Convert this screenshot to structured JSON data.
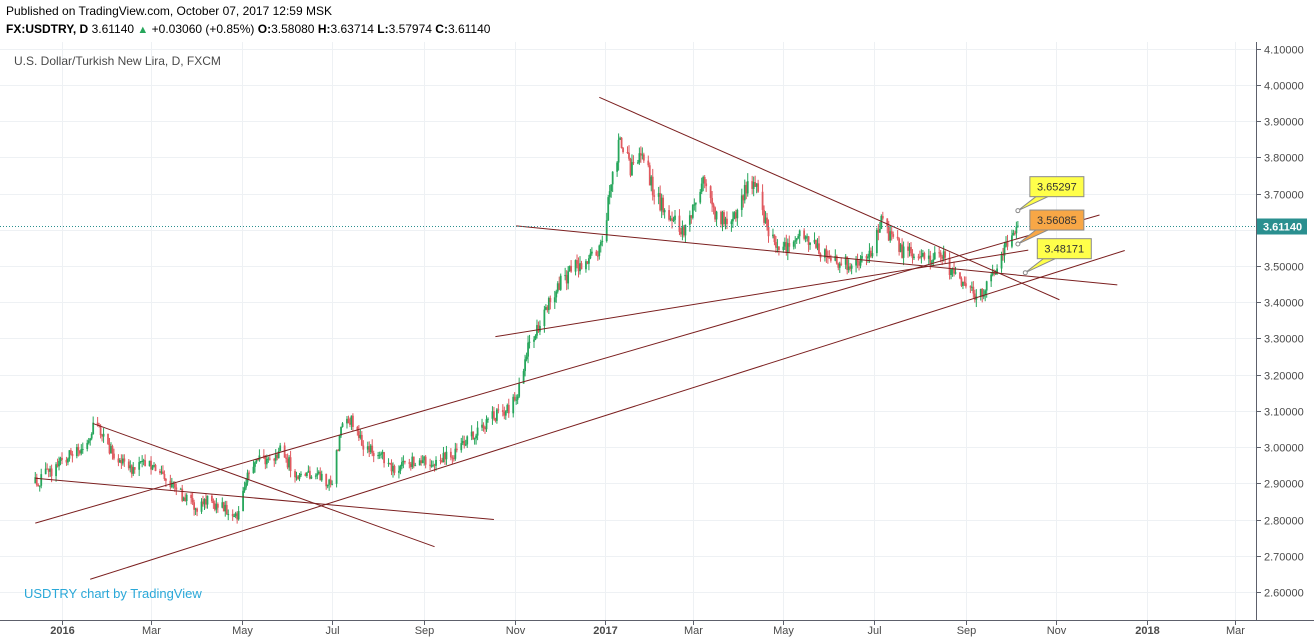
{
  "header": {
    "published": "Published on TradingView.com, October 07, 2017 12:59 MSK",
    "symbol": "FX:USDTRY, D",
    "last": "3.61140",
    "change_arrow": "▲",
    "change": "+0.03060 (+0.85%)",
    "o_label": "O:",
    "o_value": "3.58080",
    "h_label": "H:",
    "h_value": "3.63714",
    "l_label": "L:",
    "l_value": "3.57974",
    "c_label": "C:",
    "c_value": "3.61140"
  },
  "colors": {
    "up": "#26a65b",
    "down": "#e0595f",
    "trendline": "#7b1f1f",
    "grid": "#eef1f4",
    "price_line": "#2a8f8f",
    "callout_yellow": "#ffff4a",
    "callout_orange": "#f8a746",
    "watermark": "#2aa8d8"
  },
  "chart_data": {
    "type": "candlestick",
    "title": "U.S. Dollar/Turkish New Lira, D, FXCM",
    "watermark": "USDTRY chart by TradingView",
    "y_ticks": [
      "4.10000",
      "4.00000",
      "3.90000",
      "3.80000",
      "3.70000",
      "3.60000",
      "3.50000",
      "3.40000",
      "3.30000",
      "3.20000",
      "3.10000",
      "3.00000",
      "2.90000",
      "2.80000",
      "2.70000",
      "2.60000"
    ],
    "ylim": [
      2.575,
      4.105
    ],
    "current_price": "3.61140",
    "current_price_value": 3.6114,
    "x_ticks": [
      {
        "label": "2016",
        "date": "2016-01-01",
        "major": true
      },
      {
        "label": "Mar",
        "date": "2016-03-01",
        "major": false
      },
      {
        "label": "May",
        "date": "2016-05-01",
        "major": false
      },
      {
        "label": "Jul",
        "date": "2016-07-01",
        "major": false
      },
      {
        "label": "Sep",
        "date": "2016-09-01",
        "major": false
      },
      {
        "label": "Nov",
        "date": "2016-11-01",
        "major": false
      },
      {
        "label": "2017",
        "date": "2017-01-01",
        "major": true
      },
      {
        "label": "Mar",
        "date": "2017-03-01",
        "major": false
      },
      {
        "label": "May",
        "date": "2017-05-01",
        "major": false
      },
      {
        "label": "Jul",
        "date": "2017-07-01",
        "major": false
      },
      {
        "label": "Sep",
        "date": "2017-09-01",
        "major": false
      },
      {
        "label": "Nov",
        "date": "2017-11-01",
        "major": false
      },
      {
        "label": "2018",
        "date": "2018-01-01",
        "major": true
      },
      {
        "label": "Mar",
        "date": "2018-03-01",
        "major": false
      }
    ],
    "price_path": [
      [
        "2015-12-14",
        2.9
      ],
      [
        "2015-12-23",
        2.93
      ],
      [
        "2016-01-04",
        2.97
      ],
      [
        "2016-01-14",
        2.99
      ],
      [
        "2016-01-22",
        3.05
      ],
      [
        "2016-01-28",
        3.04
      ],
      [
        "2016-02-05",
        2.97
      ],
      [
        "2016-02-12",
        2.95
      ],
      [
        "2016-02-19",
        2.93
      ],
      [
        "2016-02-25",
        2.96
      ],
      [
        "2016-03-03",
        2.95
      ],
      [
        "2016-03-10",
        2.92
      ],
      [
        "2016-03-17",
        2.89
      ],
      [
        "2016-03-24",
        2.86
      ],
      [
        "2016-03-31",
        2.83
      ],
      [
        "2016-04-07",
        2.85
      ],
      [
        "2016-04-15",
        2.84
      ],
      [
        "2016-04-22",
        2.82
      ],
      [
        "2016-04-29",
        2.81
      ],
      [
        "2016-05-05",
        2.93
      ],
      [
        "2016-05-12",
        2.96
      ],
      [
        "2016-05-20",
        2.97
      ],
      [
        "2016-05-27",
        2.99
      ],
      [
        "2016-06-03",
        2.95
      ],
      [
        "2016-06-10",
        2.91
      ],
      [
        "2016-06-17",
        2.93
      ],
      [
        "2016-06-24",
        2.91
      ],
      [
        "2016-06-30",
        2.89
      ],
      [
        "2016-07-07",
        3.05
      ],
      [
        "2016-07-14",
        3.07
      ],
      [
        "2016-07-21",
        3.01
      ],
      [
        "2016-07-28",
        2.99
      ],
      [
        "2016-08-04",
        2.97
      ],
      [
        "2016-08-11",
        2.94
      ],
      [
        "2016-08-18",
        2.96
      ],
      [
        "2016-08-25",
        2.96
      ],
      [
        "2016-09-01",
        2.97
      ],
      [
        "2016-09-08",
        2.95
      ],
      [
        "2016-09-15",
        2.97
      ],
      [
        "2016-09-22",
        2.98
      ],
      [
        "2016-09-29",
        3.01
      ],
      [
        "2016-10-06",
        3.04
      ],
      [
        "2016-10-13",
        3.07
      ],
      [
        "2016-10-20",
        3.09
      ],
      [
        "2016-10-27",
        3.1
      ],
      [
        "2016-11-03",
        3.14
      ],
      [
        "2016-11-10",
        3.27
      ],
      [
        "2016-11-17",
        3.33
      ],
      [
        "2016-11-24",
        3.4
      ],
      [
        "2016-12-01",
        3.45
      ],
      [
        "2016-12-08",
        3.48
      ],
      [
        "2016-12-15",
        3.51
      ],
      [
        "2016-12-22",
        3.52
      ],
      [
        "2016-12-29",
        3.55
      ],
      [
        "2017-01-05",
        3.72
      ],
      [
        "2017-01-11",
        3.85
      ],
      [
        "2017-01-18",
        3.77
      ],
      [
        "2017-01-26",
        3.83
      ],
      [
        "2017-02-02",
        3.71
      ],
      [
        "2017-02-09",
        3.66
      ],
      [
        "2017-02-16",
        3.63
      ],
      [
        "2017-02-23",
        3.6
      ],
      [
        "2017-03-02",
        3.67
      ],
      [
        "2017-03-09",
        3.75
      ],
      [
        "2017-03-16",
        3.65
      ],
      [
        "2017-03-23",
        3.62
      ],
      [
        "2017-03-30",
        3.63
      ],
      [
        "2017-04-06",
        3.72
      ],
      [
        "2017-04-13",
        3.71
      ],
      [
        "2017-04-20",
        3.61
      ],
      [
        "2017-04-27",
        3.56
      ],
      [
        "2017-05-04",
        3.55
      ],
      [
        "2017-05-11",
        3.58
      ],
      [
        "2017-05-18",
        3.57
      ],
      [
        "2017-05-25",
        3.54
      ],
      [
        "2017-06-01",
        3.53
      ],
      [
        "2017-06-08",
        3.51
      ],
      [
        "2017-06-15",
        3.51
      ],
      [
        "2017-06-22",
        3.52
      ],
      [
        "2017-06-29",
        3.53
      ],
      [
        "2017-07-06",
        3.62
      ],
      [
        "2017-07-13",
        3.58
      ],
      [
        "2017-07-20",
        3.54
      ],
      [
        "2017-07-27",
        3.53
      ],
      [
        "2017-08-03",
        3.52
      ],
      [
        "2017-08-10",
        3.53
      ],
      [
        "2017-08-17",
        3.52
      ],
      [
        "2017-08-24",
        3.47
      ],
      [
        "2017-08-31",
        3.45
      ],
      [
        "2017-09-07",
        3.42
      ],
      [
        "2017-09-14",
        3.44
      ],
      [
        "2017-09-21",
        3.5
      ],
      [
        "2017-09-28",
        3.56
      ],
      [
        "2017-10-06",
        3.6114
      ]
    ],
    "trend_lines": [
      {
        "from": [
          "2015-12-14",
          2.79
        ],
        "to": [
          "2017-11-30",
          3.641
        ]
      },
      {
        "from": [
          "2016-01-20",
          2.635
        ],
        "to": [
          "2017-12-17",
          3.543
        ]
      },
      {
        "from": [
          "2016-01-22",
          3.065
        ],
        "to": [
          "2016-09-08",
          2.725
        ]
      },
      {
        "from": [
          "2015-12-14",
          2.914
        ],
        "to": [
          "2016-10-18",
          2.8
        ]
      },
      {
        "from": [
          "2016-10-19",
          3.305
        ],
        "to": [
          "2017-10-13",
          3.544
        ]
      },
      {
        "from": [
          "2016-11-02",
          3.611
        ],
        "to": [
          "2017-12-12",
          3.448
        ]
      },
      {
        "from": [
          "2016-12-28",
          3.966
        ],
        "to": [
          "2017-11-03",
          3.407
        ]
      }
    ],
    "callouts": [
      {
        "label": "3.65297",
        "value": 3.65297,
        "anchor_date": "2017-10-06",
        "style": "yellow"
      },
      {
        "label": "3.56085",
        "value": 3.56085,
        "anchor_date": "2017-10-06",
        "style": "orange"
      },
      {
        "label": "3.48171",
        "value": 3.48171,
        "anchor_date": "2017-10-11",
        "style": "yellow"
      }
    ]
  }
}
